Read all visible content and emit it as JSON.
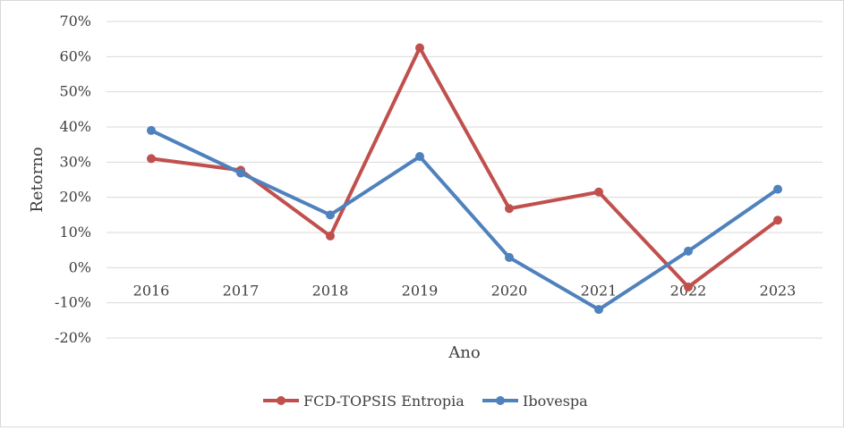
{
  "chart_data": {
    "type": "line",
    "title": "",
    "xlabel": "Ano",
    "ylabel": "Retorno",
    "categories": [
      "2016",
      "2017",
      "2018",
      "2019",
      "2020",
      "2021",
      "2022",
      "2023"
    ],
    "ylim": [
      -0.2,
      0.7
    ],
    "yticks": [
      {
        "value": 0.7,
        "label": "70%"
      },
      {
        "value": 0.6,
        "label": "60%"
      },
      {
        "value": 0.5,
        "label": "50%"
      },
      {
        "value": 0.4,
        "label": "40%"
      },
      {
        "value": 0.3,
        "label": "30%"
      },
      {
        "value": 0.2,
        "label": "20%"
      },
      {
        "value": 0.1,
        "label": "10%"
      },
      {
        "value": 0.0,
        "label": "0%"
      },
      {
        "value": -0.1,
        "label": "-10%"
      },
      {
        "value": -0.2,
        "label": "-20%"
      }
    ],
    "grid": true,
    "legend_position": "bottom",
    "series": [
      {
        "name": "FCD-TOPSIS Entropia",
        "color": "#c0504d",
        "values": [
          0.31,
          0.277,
          0.09,
          0.625,
          0.168,
          0.215,
          -0.055,
          0.135
        ]
      },
      {
        "name": "Ibovespa",
        "color": "#4f81bd",
        "values": [
          0.39,
          0.269,
          0.15,
          0.316,
          0.029,
          -0.119,
          0.047,
          0.223
        ]
      }
    ]
  }
}
